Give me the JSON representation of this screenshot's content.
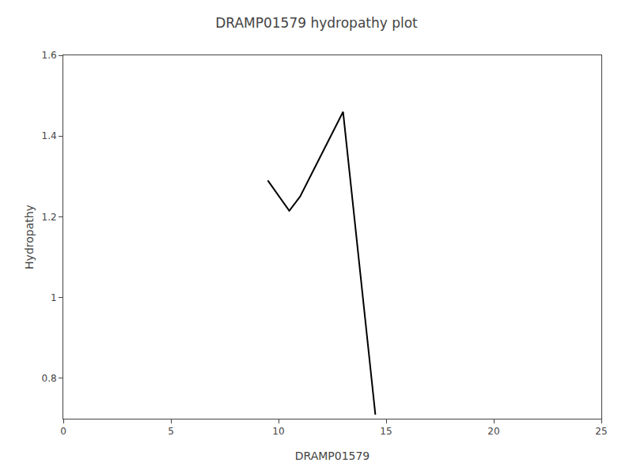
{
  "chart_data": {
    "type": "line",
    "title": "DRAMP01579 hydropathy plot",
    "xlabel": "DRAMP01579",
    "ylabel": "Hydropathy",
    "x": [
      9.5,
      10.5,
      11.0,
      13.0,
      14.5
    ],
    "values": [
      1.29,
      1.215,
      1.25,
      1.46,
      0.71
    ],
    "color": "black",
    "xlim": [
      0,
      25
    ],
    "ylim": [
      0.7,
      1.6
    ],
    "xticks": [
      0,
      5,
      10,
      15,
      20,
      25
    ],
    "yticks": [
      0.8,
      1,
      1.2,
      1.4,
      1.6
    ],
    "grid": false
  }
}
